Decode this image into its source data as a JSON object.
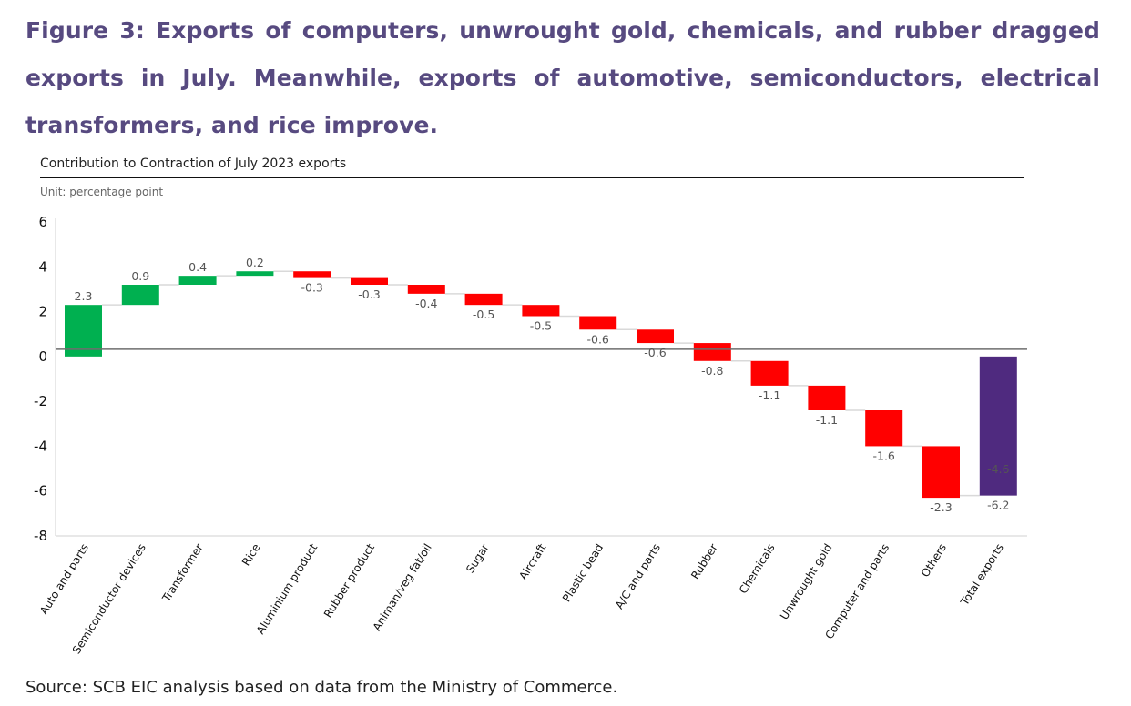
{
  "figure": {
    "title": "Figure 3: Exports of computers, unwrought gold, chemicals, and rubber dragged exports in July. Meanwhile, exports of automotive, semiconductors, electrical transformers, and rice improve.",
    "source": "Source: SCB EIC analysis based on data from the Ministry of Commerce."
  },
  "colors": {
    "title": "#574a80",
    "increase": "#00b050",
    "decrease": "#ff0000",
    "total": "#4f2a7f",
    "connector": "#d9d9d9",
    "baseline": "#6e6e6e",
    "axis": "#d9d9d9"
  },
  "chart_data": {
    "type": "bar",
    "subtype": "waterfall",
    "title": "Contribution to Contraction of July 2023 exports",
    "unit": "Unit: percentage point",
    "xlabel": "",
    "ylabel": "",
    "ylim": [
      -8,
      6
    ],
    "yticks": [
      6,
      4,
      2,
      0,
      -2,
      -4,
      -6,
      -8
    ],
    "ytick_labels": [
      "6",
      "4",
      "2",
      "0",
      "-2",
      "-4",
      "-6",
      "-8"
    ],
    "grid": false,
    "legend": "none",
    "categories": [
      "Auto and parts",
      "Semiconductor devices",
      "Transformer",
      "Rice",
      "Aluminium product",
      "Rubber product",
      "Animan/veg fat/oil",
      "Sugar",
      "Aircraft",
      "Plastic bead",
      "A/C and parts",
      "Rubber",
      "Chemicals",
      "Unwrought gold",
      "Computer and parts",
      "Others",
      "Total exports"
    ],
    "values": [
      2.3,
      0.9,
      0.4,
      0.2,
      -0.3,
      -0.3,
      -0.4,
      -0.5,
      -0.5,
      -0.6,
      -0.6,
      -0.8,
      -1.1,
      -1.1,
      -1.6,
      -2.3,
      -6.2
    ],
    "data_labels": [
      "2.3",
      "0.9",
      "0.4",
      "0.2",
      "-0.3",
      "-0.3",
      "-0.4",
      "-0.5",
      "-0.5",
      "-0.6",
      "-0.6",
      "-0.8",
      "-1.1",
      "-1.1",
      "-1.6",
      "-2.3",
      "-6.2"
    ],
    "is_total": [
      false,
      false,
      false,
      false,
      false,
      false,
      false,
      false,
      false,
      false,
      false,
      false,
      false,
      false,
      false,
      false,
      true
    ],
    "total_inner_label": "-4.6"
  }
}
